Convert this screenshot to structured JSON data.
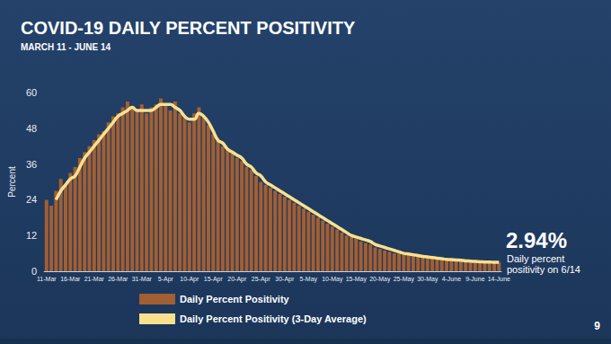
{
  "chart_data": {
    "type": "bar",
    "title": "COVID-19 DAILY PERCENT POSITIVITY",
    "subtitle": "MARCH 11 - JUNE 14",
    "y_label": "Percent",
    "categories": [
      "11-Mar",
      null,
      null,
      null,
      null,
      "16-Mar",
      null,
      null,
      null,
      null,
      "21-Mar",
      null,
      null,
      null,
      null,
      "26-Mar",
      null,
      null,
      null,
      null,
      "31-Mar",
      null,
      null,
      null,
      null,
      "5-Apr",
      null,
      null,
      null,
      null,
      "10-Apr",
      null,
      null,
      null,
      null,
      "15-Apr",
      null,
      null,
      null,
      null,
      "20-Apr",
      null,
      null,
      null,
      null,
      "25-Apr",
      null,
      null,
      null,
      null,
      "30-Apr",
      null,
      null,
      null,
      null,
      "5-May",
      null,
      null,
      null,
      null,
      "10-May",
      null,
      null,
      null,
      null,
      "15-May",
      null,
      null,
      null,
      null,
      "20-May",
      null,
      null,
      null,
      null,
      "25-May",
      null,
      null,
      null,
      null,
      "30-May",
      null,
      null,
      null,
      null,
      "4-June",
      null,
      null,
      null,
      null,
      "9-June",
      null,
      null,
      null,
      null,
      "14-June"
    ],
    "series": [
      {
        "name": "Daily Percent Positivity",
        "type": "bar",
        "color": "#b0642f",
        "values": [
          24,
          22,
          27,
          31,
          29,
          33,
          35,
          38,
          40,
          42,
          44,
          46,
          47,
          50,
          52,
          53,
          55,
          57,
          55,
          54,
          56,
          53,
          55,
          56,
          58,
          56,
          54,
          57,
          53,
          52,
          50,
          53,
          55,
          52,
          49,
          46,
          44,
          42,
          41,
          40,
          38,
          37,
          35,
          34,
          32,
          30,
          29,
          28,
          27,
          26,
          25,
          24,
          23,
          22,
          21,
          20,
          19,
          18,
          17,
          16,
          15,
          14,
          13,
          12,
          11.5,
          11,
          10,
          9.5,
          9,
          8,
          7.5,
          7,
          6.5,
          6,
          6,
          5.5,
          5.5,
          5,
          5,
          4.8,
          4.5,
          4.5,
          4.2,
          4,
          4,
          3.8,
          3.7,
          3.5,
          3.5,
          3.3,
          3.2,
          3.1,
          3.1,
          3.0,
          3.0,
          2.94
        ]
      },
      {
        "name": "Daily Percent Positivity (3-Day Average)",
        "type": "line",
        "color": "#f8e08e",
        "values": [
          null,
          null,
          24,
          27,
          29,
          31,
          32,
          35,
          38,
          40,
          42,
          44,
          46,
          48,
          50,
          52,
          53,
          54,
          55,
          54,
          54,
          54,
          54,
          55,
          56,
          56,
          56,
          55,
          54,
          52,
          51,
          51,
          53,
          52,
          50,
          47,
          44,
          43,
          41,
          40,
          39,
          38,
          36,
          35,
          33,
          32,
          30,
          29,
          28,
          27,
          26,
          25,
          24,
          23,
          22,
          21,
          20,
          19,
          18,
          17,
          16,
          15,
          14,
          13,
          12,
          11.5,
          11,
          10.5,
          10,
          9,
          8.5,
          8,
          7.5,
          7,
          6.5,
          6,
          5.8,
          5.5,
          5.3,
          5,
          4.8,
          4.6,
          4.4,
          4.2,
          4,
          3.9,
          3.8,
          3.7,
          3.5,
          3.4,
          3.3,
          3.2,
          3.1,
          3.1,
          3.0,
          3.0
        ]
      }
    ],
    "ylim": [
      0,
      60
    ],
    "yticks": [
      0,
      12,
      24,
      36,
      48,
      60
    ],
    "grid": false,
    "legend": "bottom",
    "annotations": [
      {
        "text": "2.94%"
      },
      {
        "text": "Daily percent positivity on 6/14"
      }
    ],
    "page_number": "9"
  }
}
